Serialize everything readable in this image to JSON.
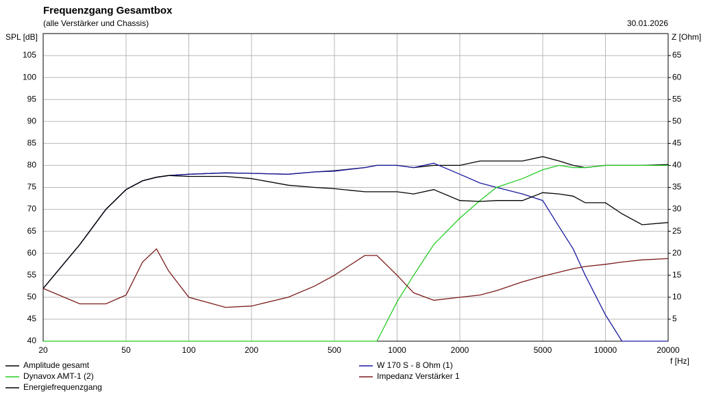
{
  "chart_data": {
    "type": "line",
    "title": "Frequenzgang Gesamtbox",
    "subtitle": "(alle Verstärker und Chassis)",
    "date": "30.01.2026",
    "ylabel": "SPL [dB]",
    "y2label": "Z [Ohm]",
    "xlabel": "f [Hz]",
    "xscale": "log",
    "grid": true,
    "xlim": [
      20,
      20000
    ],
    "xticks": [
      20,
      50,
      100,
      200,
      500,
      1000,
      2000,
      5000,
      10000,
      20000
    ],
    "ylim": [
      40,
      110
    ],
    "yticks": [
      40,
      45,
      50,
      55,
      60,
      65,
      70,
      75,
      80,
      85,
      90,
      95,
      100,
      105
    ],
    "y2lim": [
      0,
      70
    ],
    "y2ticks": [
      5,
      10,
      15,
      20,
      25,
      30,
      35,
      40,
      45,
      50,
      55,
      60,
      65
    ],
    "x": [
      20,
      30,
      40,
      50,
      60,
      70,
      80,
      100,
      150,
      200,
      300,
      400,
      500,
      700,
      800,
      1000,
      1200,
      1500,
      2000,
      2500,
      3000,
      4000,
      5000,
      6000,
      7000,
      8000,
      10000,
      12000,
      15000,
      20000
    ],
    "series": [
      {
        "name": "Amplitude gesamt",
        "color": "#000000",
        "values": [
          52,
          62,
          70,
          74.5,
          76.5,
          77.3,
          77.7,
          78,
          78.3,
          78.2,
          78,
          78.5,
          78.8,
          79.5,
          80,
          80,
          79.5,
          80,
          80,
          81,
          81,
          81,
          82,
          81,
          80,
          79.5,
          80,
          80,
          80,
          80.2
        ]
      },
      {
        "name": "W 170 S - 8 Ohm (1)",
        "color": "#1a1aa0",
        "values": [
          52,
          62,
          70,
          74.5,
          76.5,
          77.3,
          77.7,
          78,
          78.3,
          78.2,
          78,
          78.5,
          78.7,
          79.5,
          80,
          80,
          79.5,
          80.5,
          78,
          76,
          75,
          73.5,
          72,
          66,
          61,
          55,
          46,
          40,
          40,
          40
        ]
      },
      {
        "name": "Dynavox AMT-1 (2)",
        "color": "#22cc22",
        "values": [
          40,
          40,
          40,
          40,
          40,
          40,
          40,
          40,
          40,
          40,
          40,
          40,
          40,
          40,
          40,
          49,
          55,
          62,
          68,
          72,
          75,
          77,
          79,
          80,
          79.5,
          79.5,
          80,
          80,
          80,
          80
        ]
      },
      {
        "name": "Impedanz Verstärker 1",
        "color": "#7a1a1a",
        "axis": "y2",
        "values": [
          12,
          8.5,
          8.5,
          10.5,
          18,
          21,
          16,
          10,
          7.7,
          8,
          10,
          12.5,
          15,
          19.5,
          19.5,
          15,
          11,
          9.3,
          10,
          10.5,
          11.5,
          13.5,
          14.8,
          15.7,
          16.5,
          17,
          17.5,
          18,
          18.5,
          18.8
        ]
      },
      {
        "name": "Energiefrequenzgang",
        "color": "#000000",
        "values": [
          52,
          62,
          70,
          74.5,
          76.5,
          77.3,
          77.7,
          77.5,
          77.5,
          77,
          75.5,
          75,
          74.7,
          74,
          74,
          74,
          73.5,
          74.5,
          72,
          71.8,
          72,
          72,
          73.8,
          73.5,
          73,
          71.5,
          71.5,
          69,
          66.5,
          67
        ]
      }
    ]
  }
}
